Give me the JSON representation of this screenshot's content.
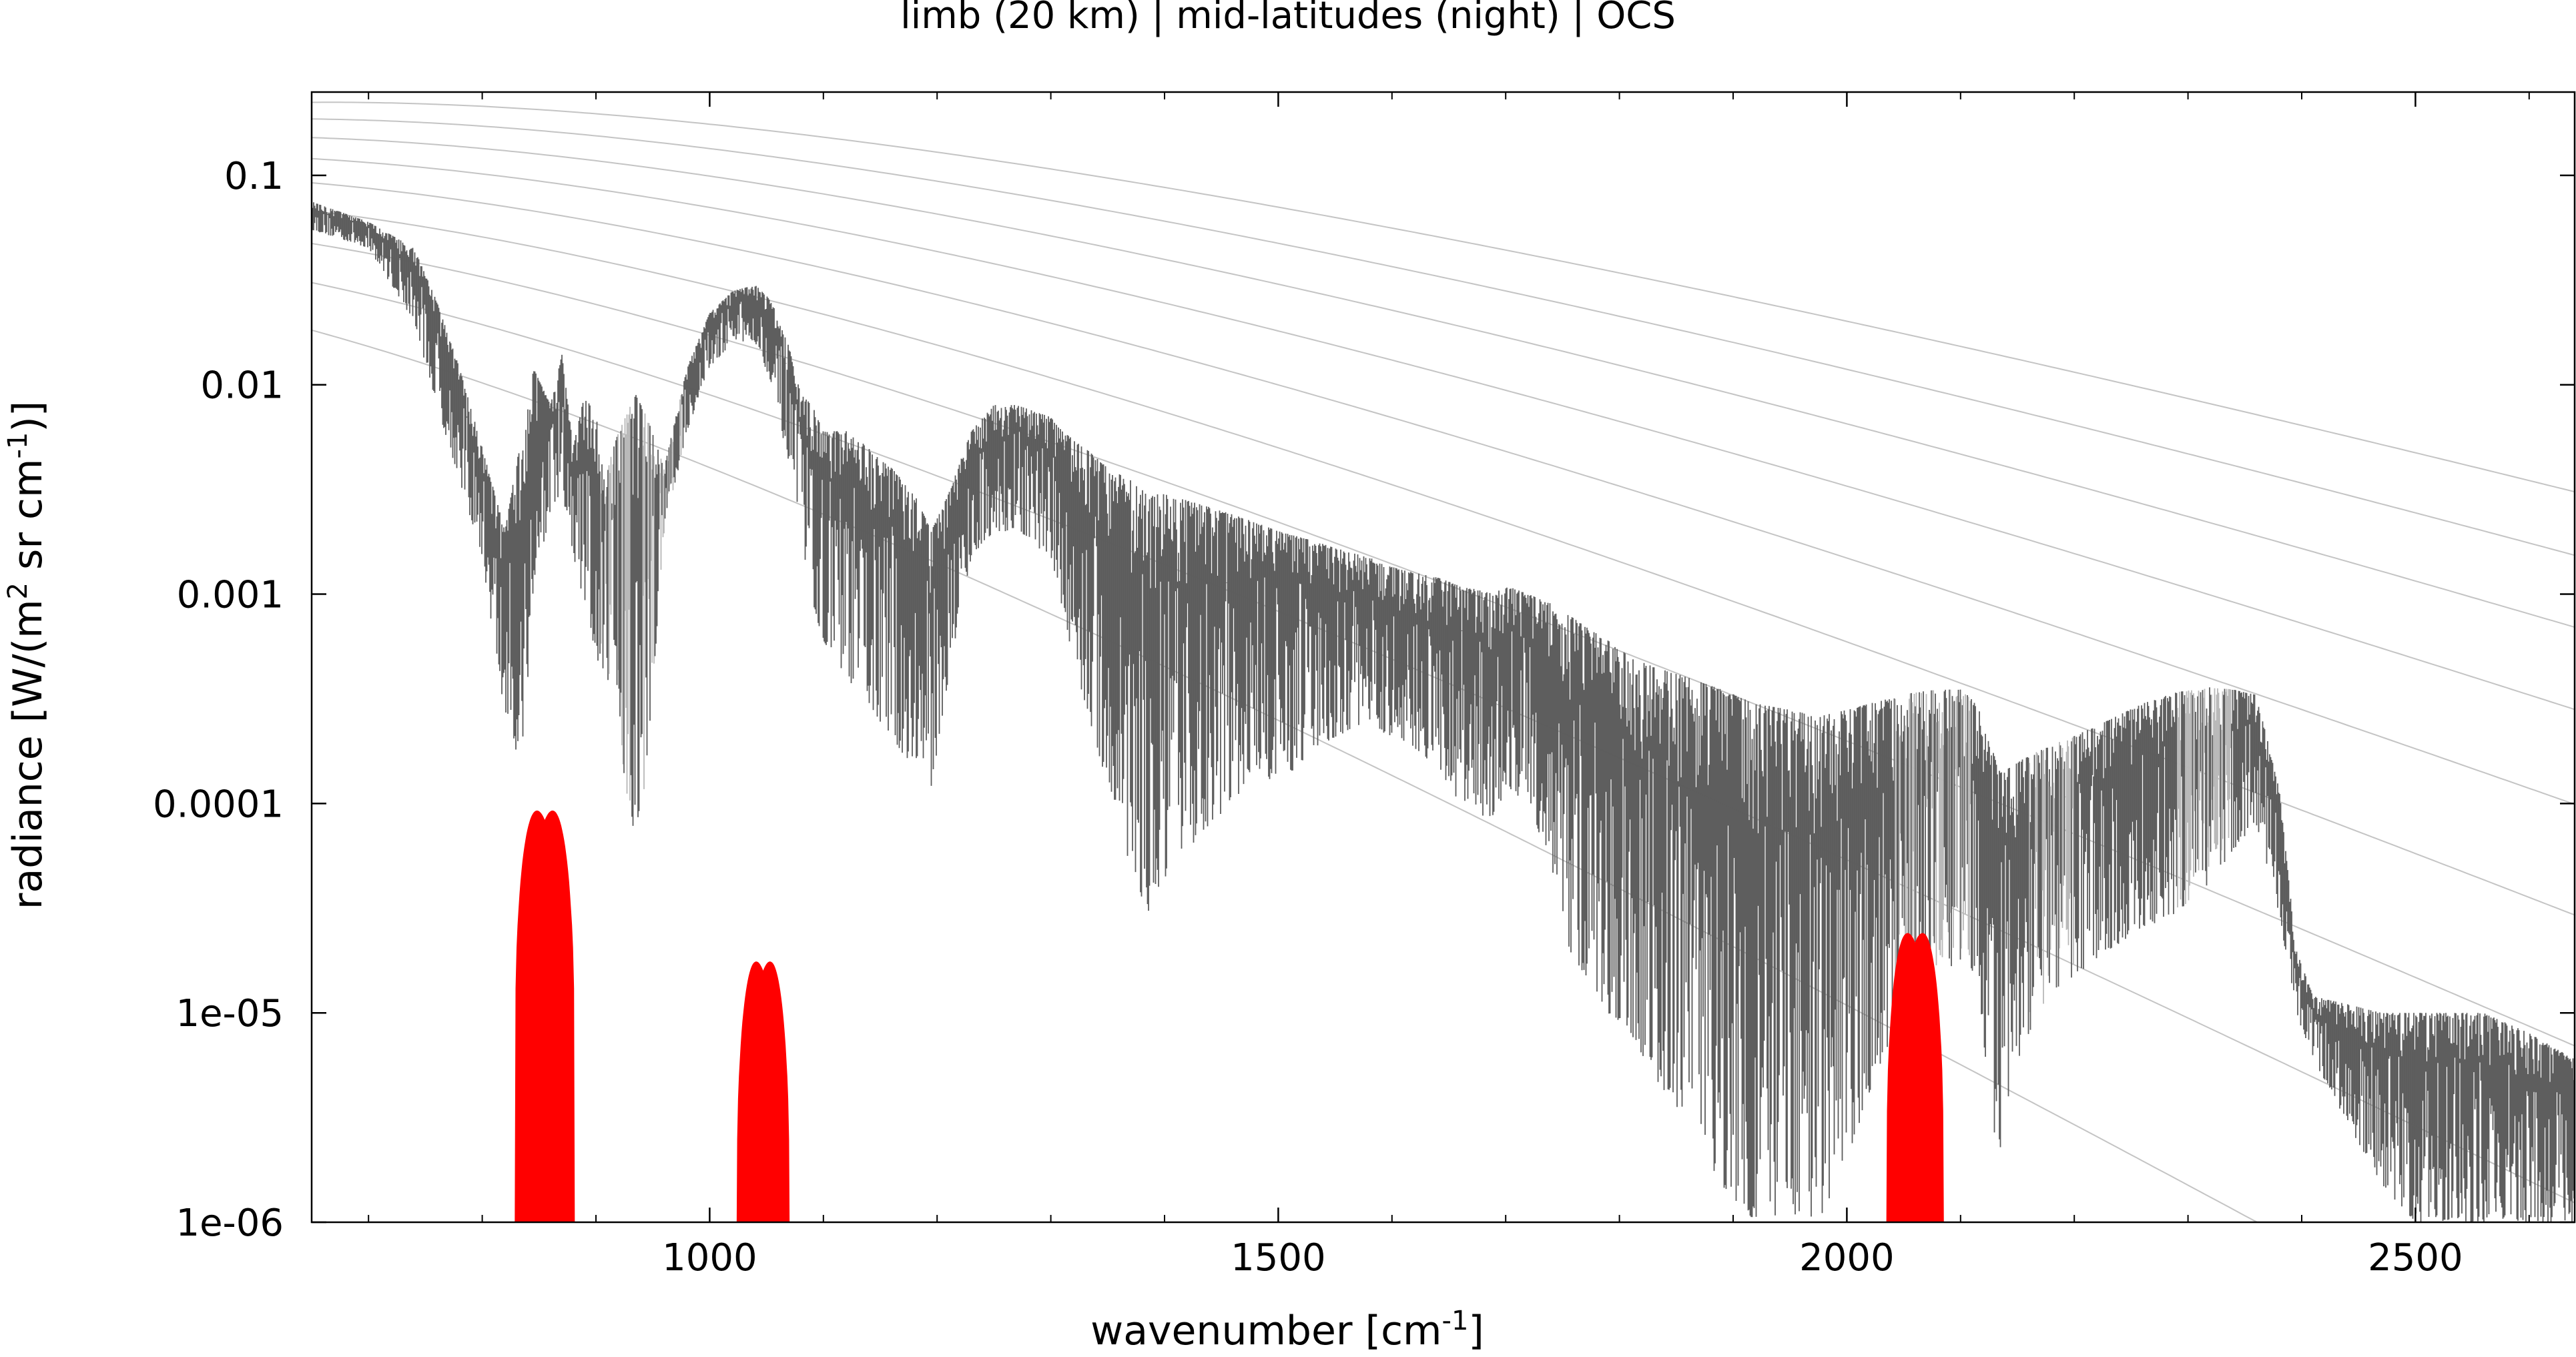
{
  "chart_data": {
    "type": "line",
    "title": "limb (20 km) | mid-latitudes (night) | OCS",
    "xlabel": {
      "pre": "wavenumber [cm",
      "sup": "-1",
      "post": "]"
    },
    "ylabel": {
      "p1": "radiance [W/(m",
      "s1": "2",
      "p2": " sr cm",
      "s2": "-1",
      "p3": ")]"
    },
    "xlim": [
      650,
      2640
    ],
    "ylim": [
      1e-06,
      0.25
    ],
    "yscale": "log",
    "xticks": [
      1000,
      1500,
      2000,
      2500
    ],
    "xtick_labels": [
      "1000",
      "1500",
      "2000",
      "2500"
    ],
    "yticks": [
      0.1,
      0.01,
      0.001,
      0.0001,
      1e-05,
      1e-06
    ],
    "ytick_labels": [
      "0.1",
      "0.01",
      "0.001",
      "0.0001",
      "1e-05",
      "1e-06"
    ],
    "grid": false,
    "legend": "none",
    "colors": {
      "spectrum_dark": "#5c5c5c",
      "spectrum_light": "#b8b8b8",
      "planck": "#b0b0b0",
      "ocs": "#ff0000"
    },
    "planck_temperatures": [
      180,
      200,
      220,
      240,
      260,
      280,
      300,
      320,
      340
    ],
    "series": [
      {
        "role": "spectrum_envelope",
        "x": [
          650,
          700,
          740,
          760,
          780,
          800,
          820,
          835,
          845,
          860,
          870,
          880,
          890,
          900,
          910,
          920,
          935,
          945,
          960,
          980,
          1000,
          1020,
          1040,
          1055,
          1070,
          1080,
          1090,
          1100,
          1120,
          1140,
          1160,
          1180,
          1195,
          1210,
          1230,
          1250,
          1270,
          1300,
          1310,
          1330,
          1350,
          1370,
          1385,
          1400,
          1420,
          1440,
          1460,
          1480,
          1500,
          1530,
          1560,
          1580,
          1590,
          1610,
          1640,
          1660,
          1690,
          1700,
          1720,
          1740,
          1755,
          1770,
          1790,
          1810,
          1830,
          1860,
          1890,
          1920,
          1950,
          1975,
          2000,
          2020,
          2040,
          2060,
          2080,
          2100,
          2115,
          2125,
          2135,
          2145,
          2160,
          2180,
          2200,
          2230,
          2260,
          2290,
          2320,
          2340,
          2360,
          2380,
          2395,
          2410,
          2440,
          2470,
          2500,
          2530,
          2560,
          2600,
          2640
        ],
        "upper": [
          0.075,
          0.06,
          0.045,
          0.025,
          0.012,
          0.005,
          0.002,
          0.006,
          0.012,
          0.008,
          0.014,
          0.005,
          0.009,
          0.007,
          0.004,
          0.006,
          0.009,
          0.007,
          0.004,
          0.012,
          0.022,
          0.028,
          0.03,
          0.025,
          0.015,
          0.009,
          0.008,
          0.006,
          0.006,
          0.005,
          0.004,
          0.003,
          0.002,
          0.003,
          0.006,
          0.008,
          0.008,
          0.007,
          0.006,
          0.005,
          0.004,
          0.0035,
          0.003,
          0.003,
          0.0028,
          0.0026,
          0.0024,
          0.0022,
          0.002,
          0.0018,
          0.0016,
          0.0015,
          0.0014,
          0.0013,
          0.0012,
          0.0011,
          0.001,
          0.0011,
          0.001,
          0.0009,
          0.0008,
          0.0007,
          0.0006,
          0.0005,
          0.00045,
          0.0004,
          0.00035,
          0.0003,
          0.00028,
          0.00026,
          0.00028,
          0.0003,
          0.00032,
          0.00034,
          0.00035,
          0.00035,
          0.0003,
          0.0002,
          0.00014,
          0.00015,
          0.00017,
          0.00019,
          0.00021,
          0.00025,
          0.0003,
          0.00034,
          0.00036,
          0.00035,
          0.00033,
          0.00012,
          2e-05,
          1.2e-05,
          1.1e-05,
          1e-05,
          1e-05,
          1e-05,
          1e-05,
          8e-06,
          6e-06
        ],
        "lower": [
          0.055,
          0.045,
          0.02,
          0.008,
          0.0035,
          0.0015,
          0.00025,
          0.00015,
          0.001,
          0.0025,
          0.003,
          0.0015,
          0.0008,
          0.0005,
          0.0004,
          0.0002,
          6e-05,
          0.00015,
          0.002,
          0.006,
          0.012,
          0.016,
          0.016,
          0.01,
          0.004,
          0.002,
          0.0009,
          0.0006,
          0.0004,
          0.0003,
          0.0002,
          0.00015,
          0.00012,
          0.0004,
          0.0015,
          0.002,
          0.002,
          0.0015,
          0.0008,
          0.0003,
          0.00012,
          5e-05,
          3e-05,
          4e-05,
          6e-05,
          8e-05,
          0.0001,
          0.00015,
          0.00012,
          0.00018,
          0.00022,
          0.00025,
          0.00022,
          0.0002,
          0.00015,
          0.0001,
          8e-05,
          0.00012,
          0.0001,
          5e-05,
          2e-05,
          1.5e-05,
          1e-05,
          8e-06,
          5e-06,
          3e-06,
          1.5e-06,
          1e-06,
          1e-06,
          1e-06,
          2e-06,
          4e-06,
          8e-06,
          1.2e-05,
          1.5e-05,
          1.8e-05,
          1.5e-05,
          3e-06,
          2e-06,
          5e-06,
          8e-06,
          1.2e-05,
          1.5e-05,
          2e-05,
          2.5e-05,
          3e-05,
          4e-05,
          6e-05,
          8e-05,
          3e-05,
          1e-05,
          6e-06,
          3e-06,
          1.5e-06,
          1e-06,
          1e-06,
          1e-06,
          1e-06,
          1e-06
        ]
      },
      {
        "role": "ocs_weighting_bands",
        "bands": [
          {
            "center": 855,
            "half_width": 26,
            "peak": 0.0001
          },
          {
            "center": 1047,
            "half_width": 23,
            "peak": 1.9e-05
          },
          {
            "center": 2060,
            "half_width": 25,
            "peak": 2.6e-05
          }
        ]
      }
    ]
  }
}
